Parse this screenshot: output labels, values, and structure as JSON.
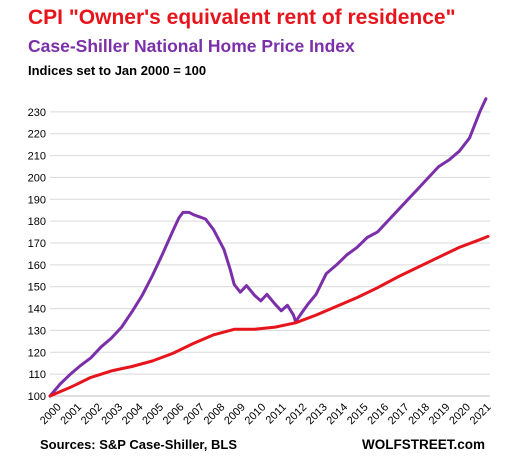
{
  "chart_data": {
    "type": "line",
    "title": "CPI \"Owner's equivalent rent of residence\"",
    "subtitle": "Case-Shiller  National  Home Price  Index",
    "note": "Indices set to Jan 2000 = 100",
    "source": "Sources: S&P Case-Shiller, BLS",
    "brand": "WOLFSTREET.com",
    "xlim": [
      2000,
      2021.5
    ],
    "ylim": [
      100,
      240
    ],
    "yticks": [
      100,
      110,
      120,
      130,
      140,
      150,
      160,
      170,
      180,
      190,
      200,
      210,
      220,
      230
    ],
    "xticks": [
      2000,
      2001,
      2002,
      2003,
      2004,
      2005,
      2006,
      2007,
      2008,
      2009,
      2010,
      2011,
      2012,
      2013,
      2014,
      2015,
      2016,
      2017,
      2018,
      2019,
      2020,
      2021
    ],
    "grid": "horizontal",
    "series": [
      {
        "name": "Case-Shiller  National  Home Price  Index",
        "color": "#7b2fa8",
        "x": [
          2000,
          2000.5,
          2001,
          2001.5,
          2002,
          2002.5,
          2003,
          2003.5,
          2004,
          2004.5,
          2005,
          2005.5,
          2006,
          2006.3,
          2006.5,
          2006.8,
          2007,
          2007.3,
          2007.6,
          2008,
          2008.5,
          2008.8,
          2009,
          2009.3,
          2009.6,
          2010,
          2010.3,
          2010.6,
          2011,
          2011.3,
          2011.6,
          2011.9,
          2012,
          2012.3,
          2012.6,
          2013,
          2013.5,
          2014,
          2014.5,
          2015,
          2015.5,
          2016,
          2016.5,
          2017,
          2017.5,
          2018,
          2018.5,
          2019,
          2019.5,
          2020,
          2020.5,
          2021,
          2021.3
        ],
        "y": [
          100,
          105.5,
          110,
          114,
          117.5,
          122.5,
          126.5,
          131.5,
          138.5,
          146,
          155,
          165,
          175.5,
          181.5,
          184,
          184,
          183,
          182,
          181,
          176,
          167,
          158,
          151,
          147.5,
          150.5,
          146,
          143.5,
          146.5,
          142,
          139,
          141.5,
          137,
          134,
          138,
          142,
          146.5,
          156,
          160,
          164.5,
          168,
          172.5,
          175,
          180,
          185,
          190,
          195,
          200,
          205,
          208,
          212,
          218,
          230,
          236
        ]
      },
      {
        "name": "CPI \"Owner's equivalent rent of residence\"",
        "color": "#e8141c",
        "x": [
          2000,
          2001,
          2002,
          2003,
          2004,
          2005,
          2006,
          2007,
          2008,
          2009,
          2010,
          2011,
          2012,
          2013,
          2014,
          2015,
          2016,
          2017,
          2018,
          2019,
          2020,
          2021,
          2021.4
        ],
        "y": [
          100,
          104,
          108.5,
          111.5,
          113.5,
          116,
          119.5,
          124,
          128,
          130.5,
          130.5,
          131.5,
          133.5,
          137,
          141,
          145,
          149.5,
          154.5,
          159,
          163.5,
          168,
          171.5,
          173
        ]
      }
    ]
  }
}
